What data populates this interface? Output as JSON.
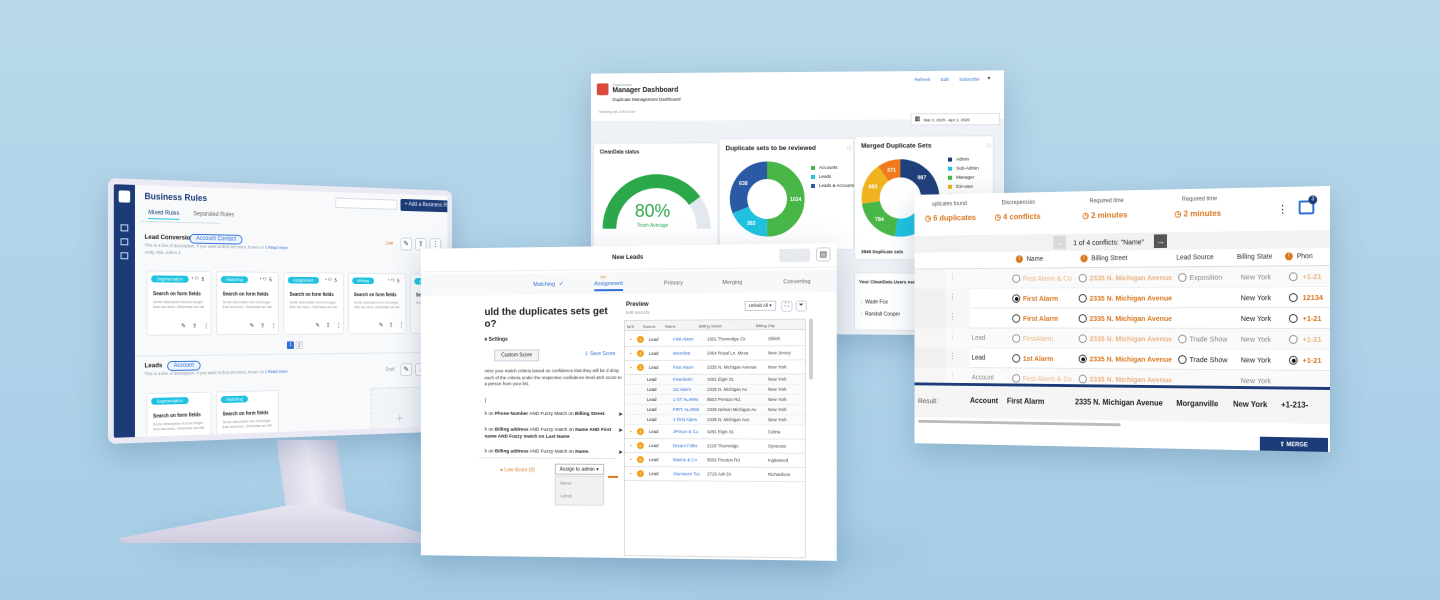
{
  "rules": {
    "title": "Business Rules",
    "search_placeholder": "",
    "add_button": "+ Add a Business Rule",
    "tabs": [
      "Mixed Rules",
      "Separated Rules"
    ],
    "group1": {
      "title": "Lead Conversion",
      "badge": "Account Contact",
      "desc": "This is a line of description. If you want to find out more, hover on it",
      "desc_link": "Read more",
      "owners": "Andy, Mia, Johnn 3",
      "status": "Live"
    },
    "cards1": [
      {
        "tag": "Segmentation",
        "title": "Search on form fields",
        "desc": "Some description but not longer than two lines. Otherwise we will add and n..."
      },
      {
        "tag": "Matching",
        "title": "Search on form fields",
        "desc": "Some description but not longer than two lines. Otherwise we will add and n..."
      },
      {
        "tag": "Assignment",
        "title": "Search on form fields",
        "desc": "Some description but not longer than two lines. Otherwise we will add and n..."
      },
      {
        "tag": "Writing",
        "title": "Search on form fields",
        "desc": "Some description but not longer than two lines. Otherwise we will add and n..."
      },
      {
        "tag": "Duplicate",
        "title": "Search",
        "desc": "Some de..."
      }
    ],
    "counts": "5",
    "pages": [
      "1",
      "2"
    ],
    "group2": {
      "title": "Leads",
      "badge": "Account",
      "desc": "This is a line of description. If you want to find out more, hover on it",
      "desc_link": "Read more",
      "status": "Draft"
    },
    "cards2": [
      {
        "tag": "Segmentation",
        "title": "Search on form fields",
        "desc": "Some description but not longer than two lines. Otherwise we will add and n..."
      },
      {
        "tag": "Matching",
        "title": "Search on form fields",
        "desc": "Some description but not longer than two lines. Otherwise we will add and n..."
      }
    ]
  },
  "dashboard": {
    "breadcrumb": "Dashboard",
    "title": "Manager Dashboard",
    "subtitle": "Duplicate Management Dashboard",
    "viewing": "Viewing as John Doe",
    "actions": [
      "Refresh",
      "Edit",
      "Subscribe"
    ],
    "date_range": "Mar 2, 2020 - Apr 1, 2020",
    "status_card": {
      "title": "CleanData status",
      "value": 80,
      "value_label": "80%",
      "caption": "Team Average"
    },
    "review_card": {
      "title": "Duplicate sets to be reviewed",
      "legend": [
        "Accounts",
        "Leads",
        "Leads & Accounts"
      ],
      "values": [
        1024,
        382,
        638
      ],
      "labels": [
        "1024",
        "382",
        "638"
      ],
      "colors": [
        "#48b748",
        "#1fc2e0",
        "#2b5aa5"
      ]
    },
    "merged_card": {
      "title": "Merged Duplicate Sets",
      "legend": [
        "Admin",
        "Sub-Admin",
        "Manager",
        "Ext-user",
        "Bot"
      ],
      "values": [
        987,
        1024,
        784,
        683,
        371
      ],
      "labels": [
        "987",
        "1024",
        "784",
        "683",
        "371"
      ],
      "colors": [
        "#1f3f7a",
        "#1fc2e0",
        "#48b748",
        "#f0b21e",
        "#f07a1e"
      ],
      "footer": "3849 Duplicate sets",
      "see_all": "SEE ALL"
    },
    "attention": {
      "title": "Your CleanData Users needing attention",
      "cols": [
        "Points",
        "% clean"
      ],
      "users": [
        {
          "name": "Wade Fox",
          "pct": "11%",
          "value": 11
        },
        {
          "name": "Randall Cooper",
          "pct": "23%",
          "value": 23
        }
      ]
    }
  },
  "leads": {
    "title": "New Leads",
    "steps": [
      "Matching",
      "Assignment",
      "Primary",
      "Merging",
      "Converting"
    ],
    "step_badge": "Set",
    "heading": "uld the duplicates sets get o?",
    "settings_label": "e Settings",
    "custom_score": "Custom Score",
    "save_score": "Save Score",
    "intro": "mize your match criteria based on confidence that they will be d drop each of the criteria under the respective confidence level atch score to a person from your list.",
    "criteria": [
      {
        "a": "h on ",
        "b": "Phone Number",
        "c": " AND Fuzzy Match on ",
        "d": "Billing Street."
      },
      {
        "a": "h on ",
        "b": "Billing address",
        "c": " AND Fuzzy match on ",
        "d": "Name AND First name AND Fuzzy match on Last Name"
      },
      {
        "a": "h on ",
        "b": "Billing address",
        "c": " AND Fuzzy Match on ",
        "d": "Name."
      }
    ],
    "low_score": "Low Score (0)",
    "assign_label": "Assign to admin",
    "dropdown_items": [
      "Name",
      "Admin"
    ],
    "preview": {
      "title": "Preview",
      "count": "549 records",
      "unfold": "Unfold All",
      "cols": [
        "M/S",
        "Source",
        "Name",
        "Billing Street",
        "Billing City"
      ],
      "rows": [
        {
          "type": "Lead",
          "name": "First Alarm",
          "street": "1901 Thornridge Cir",
          "city": "Shiloh",
          "badge": "1",
          "indent": 0
        },
        {
          "type": "Lead",
          "name": "Microfirst",
          "street": "2464 Royal Ln. Mesa",
          "city": "New Jersey",
          "badge": "2",
          "indent": 0
        },
        {
          "type": "Lead",
          "name": "First Alarm",
          "street": "2335 N. Michigan Avenue",
          "city": "New York",
          "badge": "3",
          "indent": 0
        },
        {
          "type": "Lead",
          "name": "FirstAlarm",
          "street": "4291 Elgin St.",
          "city": "New York",
          "badge": "",
          "indent": 1
        },
        {
          "type": "Lead",
          "name": "1st Alarm",
          "street": "2335 N. Michigan Av",
          "city": "New York",
          "badge": "",
          "indent": 1
        },
        {
          "type": "Lead",
          "name": "1-ST ALARM",
          "street": "8502 Preston Rd.",
          "city": "New York",
          "badge": "",
          "indent": 1
        },
        {
          "type": "Lead",
          "name": "FIRT. ALARM",
          "street": "2335 Nelson Michigan Av",
          "city": "New York",
          "badge": "",
          "indent": 1
        },
        {
          "type": "Lead",
          "name": "1 First Alarm",
          "street": "2335 N. Michigan Ave",
          "city": "New York",
          "badge": "",
          "indent": 1
        },
        {
          "type": "Lead",
          "name": "JPrison & Co",
          "street": "4291 Elgin St.",
          "city": "Celina",
          "badge": "4",
          "indent": 0
        },
        {
          "type": "Lead",
          "name": "Dream Folks",
          "street": "2118 Thornridge",
          "city": "Syracuse",
          "badge": "5",
          "indent": 0
        },
        {
          "type": "Lead",
          "name": "Marine & Co",
          "street": "8502 Preston Rd",
          "city": "Inglewood",
          "badge": "6",
          "indent": 0
        },
        {
          "type": "Lead",
          "name": "Aluminum Tec",
          "street": "2715 Ash Dr.",
          "city": "Richardson",
          "badge": "7",
          "indent": 0
        }
      ]
    }
  },
  "conflicts": {
    "stats": [
      {
        "label": "uplicates found",
        "value": "6 duplicates"
      },
      {
        "label": "Discrepencies",
        "value": "4 conflicts"
      },
      {
        "label": "Required time",
        "value": "2 minutes"
      },
      {
        "label": "Required time",
        "value": "2 minutes"
      }
    ],
    "gift_count": "3",
    "nav": "1 of 4 conflicts: \"Name\"",
    "cols": [
      "Name",
      "Billing Street",
      "Lead Source",
      "Billing State",
      "Phon"
    ],
    "rows": [
      {
        "type": "",
        "name": "First Alarm & Co",
        "street": "2335 N. Michigan Avenue",
        "source": "Exposition",
        "state": "New York",
        "phone": "+1-21",
        "faded": true,
        "sel": -1
      },
      {
        "type": "",
        "name": "First Alarm",
        "street": "2335 N. Michigan Avenue",
        "source": "",
        "state": "New York",
        "phone": "12134",
        "faded": false,
        "sel": 0
      },
      {
        "type": "",
        "name": "First Alarm",
        "street": "2335 N. Michigan Avenue",
        "source": "",
        "state": "New York",
        "phone": "+1-21",
        "faded": false,
        "sel": -1
      },
      {
        "type": "Lead",
        "name": "FirstAlarm",
        "street": "2335 N. Michigan Avenue",
        "source": "Trade Show",
        "state": "New York",
        "phone": "+1-21",
        "faded": true,
        "sel": -1
      },
      {
        "type": "Lead",
        "name": "1st Alarm",
        "street": "2335 N. Michigan Avenue",
        "source": "Trade Show",
        "state": "New York",
        "phone": "+1-21",
        "faded": false,
        "sel": 1
      },
      {
        "type": "Account",
        "name": "First Alarm & Co",
        "street": "2335 N. Michigan Avenue",
        "source": "",
        "state": "New York",
        "phone": "",
        "faded": true,
        "sel": -1
      }
    ],
    "result": {
      "label": "Result:",
      "type": "Account",
      "name": "First Alarm",
      "street": "2335 N. Michigan Avenue",
      "city": "Morganville",
      "state": "New York",
      "phone": "+1-213-"
    },
    "merge": "MERGE"
  }
}
